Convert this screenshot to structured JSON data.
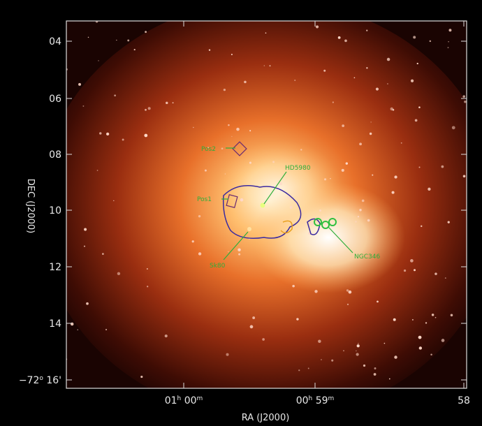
{
  "figure": {
    "x_axis": {
      "label": "RA (J2000)",
      "ticks": [
        {
          "parts": [
            "01",
            "h",
            " 00",
            "m"
          ]
        },
        {
          "parts": [
            "00",
            "h",
            " 59",
            "m"
          ]
        },
        {
          "parts": [
            "58"
          ]
        }
      ]
    },
    "y_axis": {
      "label": "DEC (J2000)",
      "ticks": [
        {
          "parts": [
            "04"
          ]
        },
        {
          "parts": [
            "06"
          ]
        },
        {
          "parts": [
            "08"
          ]
        },
        {
          "parts": [
            "10"
          ]
        },
        {
          "parts": [
            "12"
          ]
        },
        {
          "parts": [
            "14"
          ]
        },
        {
          "parts": [
            "−72",
            "o",
            " 16'"
          ]
        }
      ]
    },
    "annotations": [
      "Pos2",
      "HD5980",
      "Pos1",
      "Sk80",
      "NGC346"
    ]
  }
}
